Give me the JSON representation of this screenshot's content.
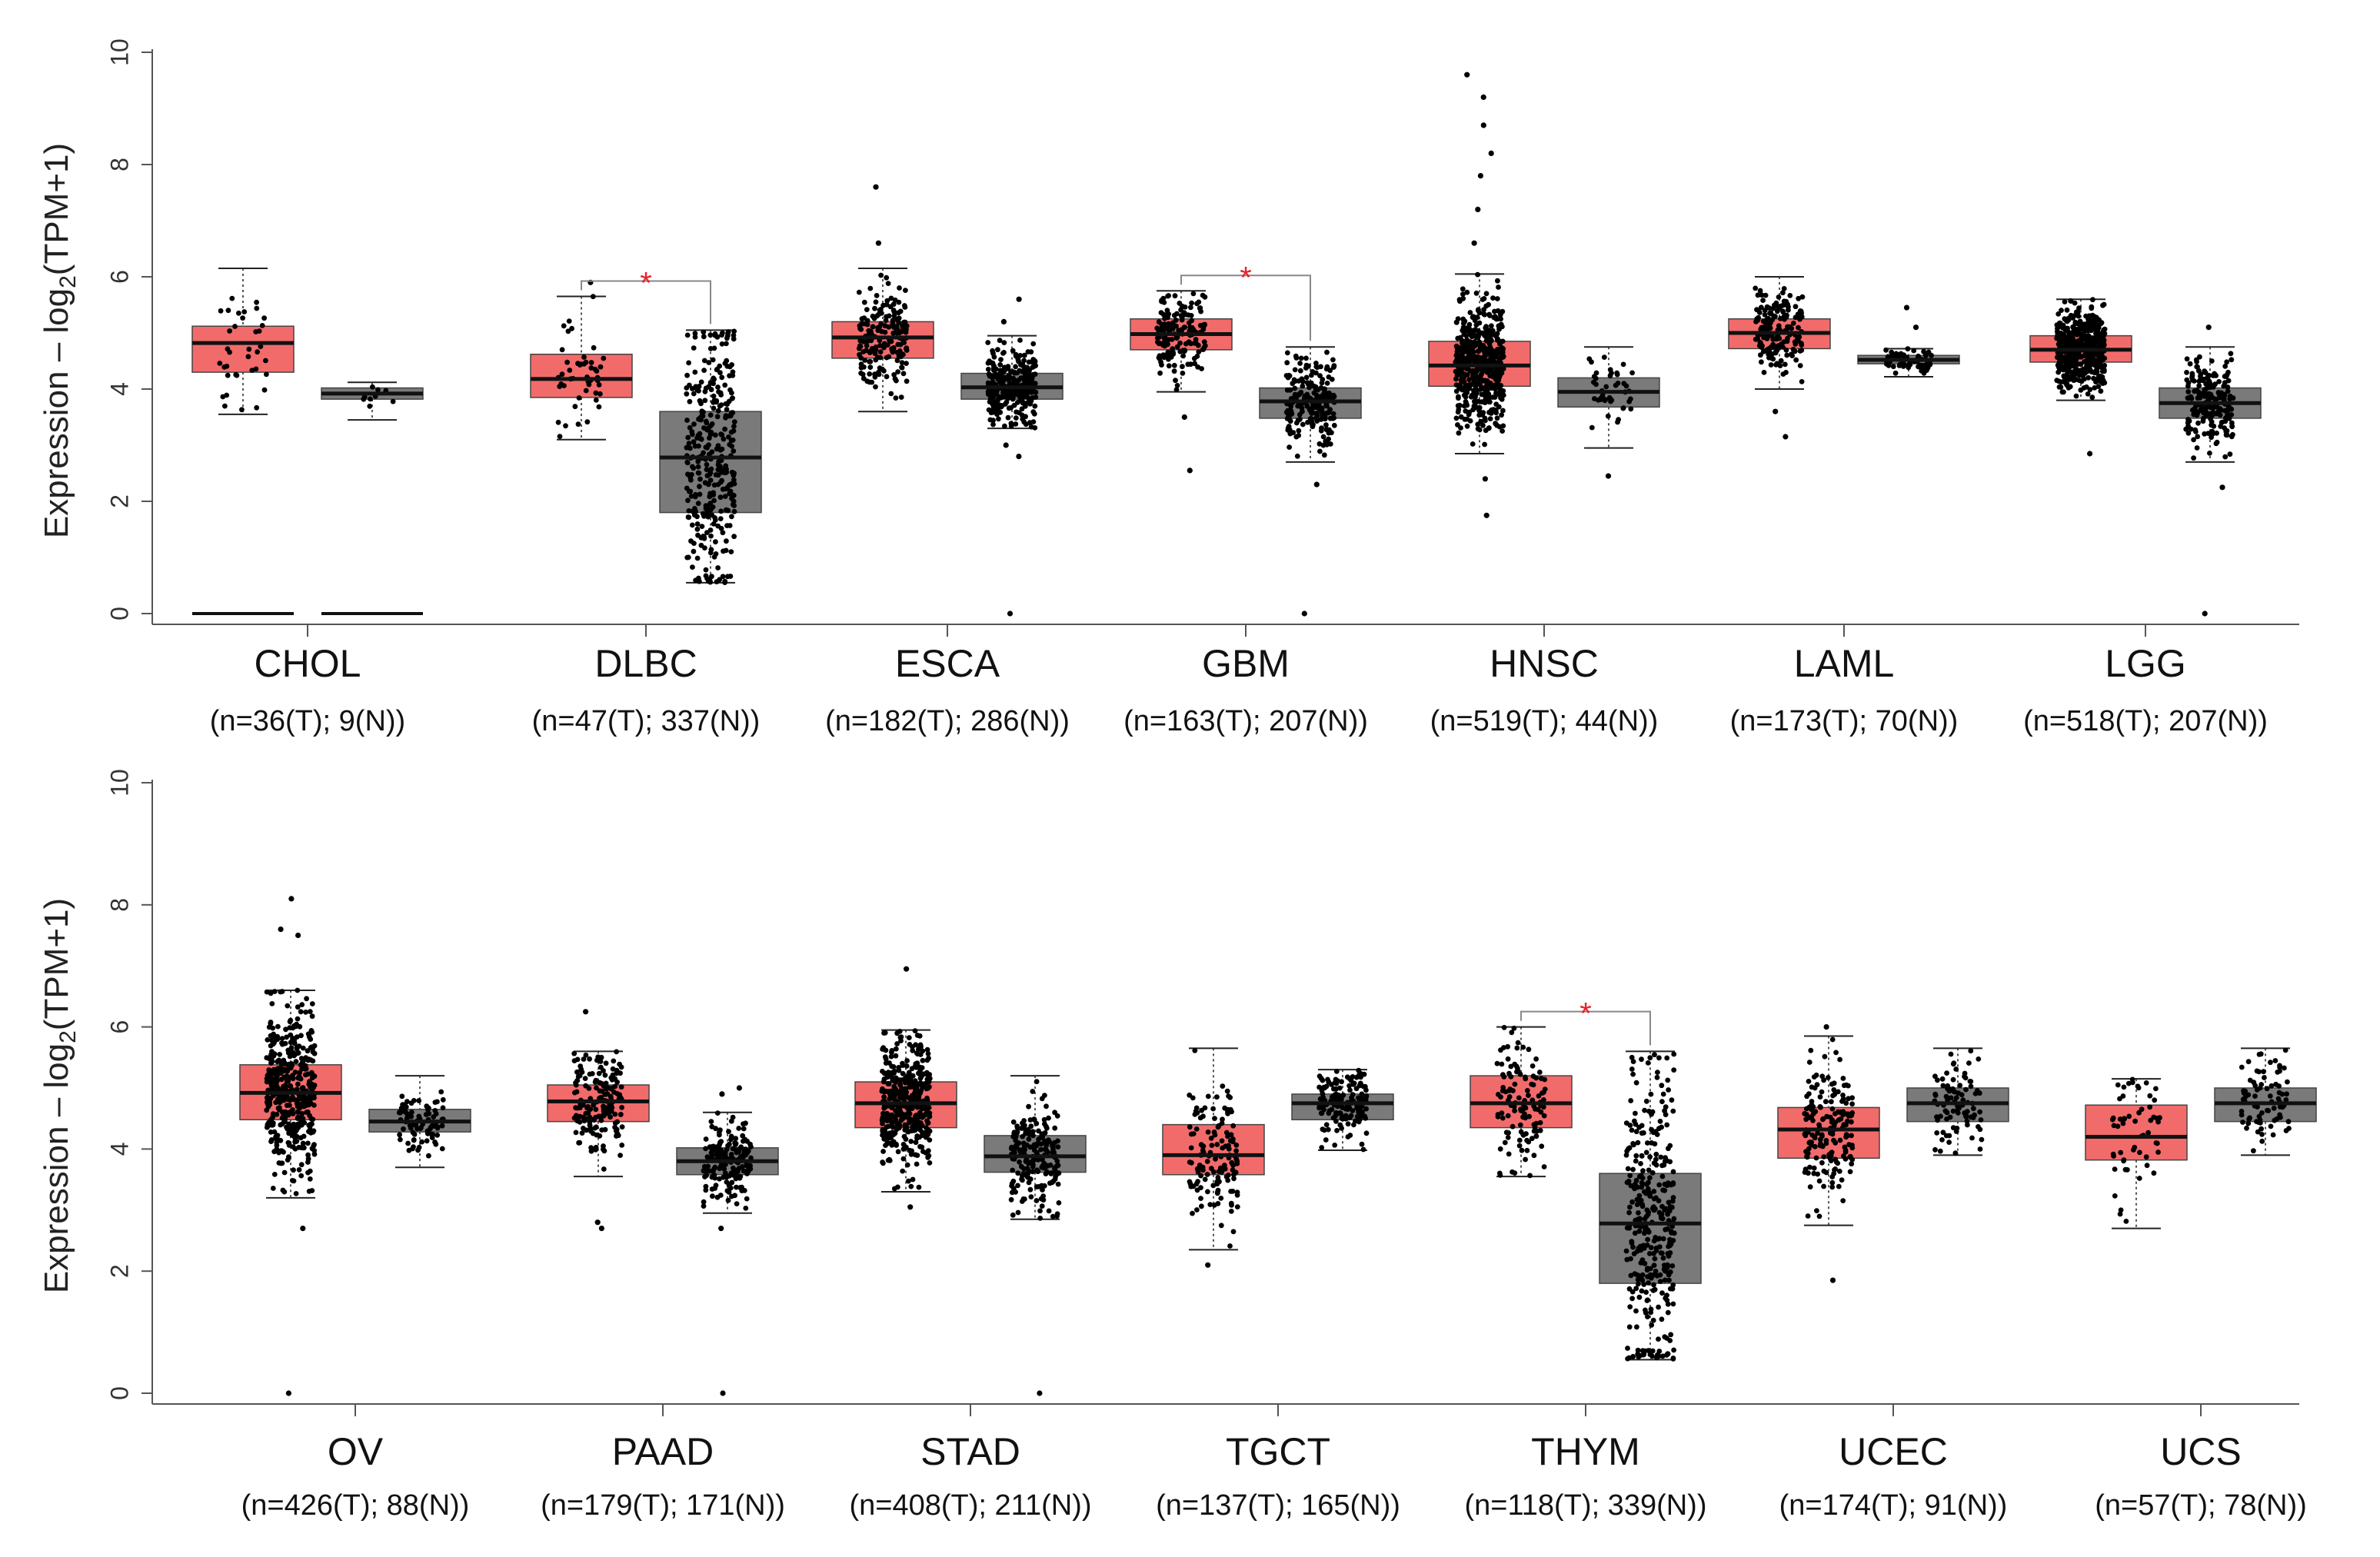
{
  "colors": {
    "tumor_fill": "#f26b6b",
    "normal_fill": "#7a7a7a",
    "median": "#111111",
    "point": "#000000",
    "significance": "#e8212b",
    "axis": "#555555"
  },
  "chart_data": [
    {
      "type": "box",
      "ylabel": "Expression – log2(TPM+1)",
      "ylabel_main": "Expression – log",
      "ylabel_sub": "2",
      "ylabel_tail": "(TPM+1)",
      "ylim": [
        0,
        10
      ],
      "yticks": [
        "0",
        "2",
        "4",
        "6",
        "8",
        "10"
      ],
      "grid": false,
      "categories": [
        {
          "name": "CHOL",
          "n_label": "(n=36(T); 9(N))",
          "significant": false,
          "sig_symbol": "",
          "tumor": {
            "q1": 4.3,
            "median": 4.82,
            "q3": 5.12,
            "whisker_low": 3.55,
            "whisker_high": 6.15,
            "n_points": 36,
            "outliers": [],
            "zero_line": true
          },
          "normal": {
            "q1": 3.82,
            "median": 3.92,
            "q3": 4.02,
            "whisker_low": 3.45,
            "whisker_high": 4.12,
            "n_points": 9,
            "outliers": [],
            "zero_line": true
          }
        },
        {
          "name": "DLBC",
          "n_label": "(n=47(T); 337(N))",
          "significant": true,
          "sig_symbol": "*",
          "tumor": {
            "q1": 3.85,
            "median": 4.18,
            "q3": 4.62,
            "whisker_low": 3.1,
            "whisker_high": 5.65,
            "n_points": 47,
            "outliers": [
              5.9
            ],
            "zero_line": false
          },
          "normal": {
            "q1": 1.8,
            "median": 2.78,
            "q3": 3.6,
            "whisker_low": 0.55,
            "whisker_high": 5.05,
            "n_points": 337,
            "outliers": [],
            "zero_line": false
          }
        },
        {
          "name": "ESCA",
          "n_label": "(n=182(T); 286(N))",
          "significant": false,
          "sig_symbol": "",
          "tumor": {
            "q1": 4.55,
            "median": 4.92,
            "q3": 5.2,
            "whisker_low": 3.6,
            "whisker_high": 6.15,
            "n_points": 182,
            "outliers": [
              6.6,
              7.6
            ],
            "zero_line": false
          },
          "normal": {
            "q1": 3.82,
            "median": 4.03,
            "q3": 4.28,
            "whisker_low": 3.3,
            "whisker_high": 4.95,
            "n_points": 286,
            "outliers": [
              2.8,
              3.0,
              5.2,
              5.6,
              0
            ],
            "zero_line": false
          }
        },
        {
          "name": "GBM",
          "n_label": "(n=163(T); 207(N))",
          "significant": true,
          "sig_symbol": "*",
          "tumor": {
            "q1": 4.7,
            "median": 4.98,
            "q3": 5.25,
            "whisker_low": 3.95,
            "whisker_high": 5.75,
            "n_points": 163,
            "outliers": [
              2.55,
              3.5
            ],
            "zero_line": false
          },
          "normal": {
            "q1": 3.48,
            "median": 3.78,
            "q3": 4.02,
            "whisker_low": 2.7,
            "whisker_high": 4.75,
            "n_points": 207,
            "outliers": [
              2.3,
              0
            ],
            "zero_line": false
          }
        },
        {
          "name": "HNSC",
          "n_label": "(n=519(T); 44(N))",
          "significant": false,
          "sig_symbol": "",
          "tumor": {
            "q1": 4.05,
            "median": 4.42,
            "q3": 4.85,
            "whisker_low": 2.85,
            "whisker_high": 6.05,
            "n_points": 519,
            "outliers": [
              1.75,
              2.4,
              6.6,
              7.2,
              7.8,
              8.2,
              8.7,
              9.2,
              9.6
            ],
            "zero_line": false
          },
          "normal": {
            "q1": 3.68,
            "median": 3.95,
            "q3": 4.2,
            "whisker_low": 2.95,
            "whisker_high": 4.75,
            "n_points": 44,
            "outliers": [
              2.45
            ],
            "zero_line": false
          }
        },
        {
          "name": "LAML",
          "n_label": "(n=173(T); 70(N))",
          "significant": false,
          "sig_symbol": "",
          "tumor": {
            "q1": 4.72,
            "median": 5.0,
            "q3": 5.25,
            "whisker_low": 4.0,
            "whisker_high": 6.0,
            "n_points": 173,
            "outliers": [
              3.15,
              3.6
            ],
            "zero_line": false
          },
          "normal": {
            "q1": 4.45,
            "median": 4.52,
            "q3": 4.6,
            "whisker_low": 4.22,
            "whisker_high": 4.72,
            "n_points": 70,
            "outliers": [
              5.45,
              5.1
            ],
            "zero_line": false
          }
        },
        {
          "name": "LGG",
          "n_label": "(n=518(T); 207(N))",
          "significant": false,
          "sig_symbol": "",
          "tumor": {
            "q1": 4.48,
            "median": 4.7,
            "q3": 4.95,
            "whisker_low": 3.8,
            "whisker_high": 5.6,
            "n_points": 518,
            "outliers": [
              2.85
            ],
            "zero_line": false
          },
          "normal": {
            "q1": 3.48,
            "median": 3.75,
            "q3": 4.02,
            "whisker_low": 2.7,
            "whisker_high": 4.75,
            "n_points": 207,
            "outliers": [
              2.25,
              5.1,
              0
            ],
            "zero_line": false
          }
        }
      ]
    },
    {
      "type": "box",
      "ylabel": "Expression – log2(TPM+1)",
      "ylabel_main": "Expression – log",
      "ylabel_sub": "2",
      "ylabel_tail": "(TPM+1)",
      "ylim": [
        0,
        10
      ],
      "yticks": [
        "0",
        "2",
        "4",
        "6",
        "8",
        "10"
      ],
      "grid": false,
      "categories": [
        {
          "name": "OV",
          "n_label": "(n=426(T); 88(N))",
          "significant": false,
          "sig_symbol": "",
          "tumor": {
            "q1": 4.48,
            "median": 4.92,
            "q3": 5.38,
            "whisker_low": 3.2,
            "whisker_high": 6.6,
            "n_points": 426,
            "outliers": [
              2.7,
              7.5,
              7.6,
              8.1,
              0
            ],
            "zero_line": false
          },
          "normal": {
            "q1": 4.28,
            "median": 4.45,
            "q3": 4.65,
            "whisker_low": 3.7,
            "whisker_high": 5.2,
            "n_points": 88,
            "outliers": [],
            "zero_line": false
          }
        },
        {
          "name": "PAAD",
          "n_label": "(n=179(T); 171(N))",
          "significant": false,
          "sig_symbol": "",
          "tumor": {
            "q1": 4.45,
            "median": 4.78,
            "q3": 5.05,
            "whisker_low": 3.55,
            "whisker_high": 5.6,
            "n_points": 179,
            "outliers": [
              2.7,
              2.8,
              6.25
            ],
            "zero_line": false
          },
          "normal": {
            "q1": 3.58,
            "median": 3.8,
            "q3": 4.02,
            "whisker_low": 2.95,
            "whisker_high": 4.6,
            "n_points": 171,
            "outliers": [
              2.7,
              4.9,
              5.0,
              0
            ],
            "zero_line": false
          }
        },
        {
          "name": "STAD",
          "n_label": "(n=408(T); 211(N))",
          "significant": false,
          "sig_symbol": "",
          "tumor": {
            "q1": 4.35,
            "median": 4.75,
            "q3": 5.1,
            "whisker_low": 3.3,
            "whisker_high": 5.95,
            "n_points": 408,
            "outliers": [
              3.05,
              6.95
            ],
            "zero_line": false
          },
          "normal": {
            "q1": 3.62,
            "median": 3.88,
            "q3": 4.22,
            "whisker_low": 2.85,
            "whisker_high": 5.2,
            "n_points": 211,
            "outliers": [
              0
            ],
            "zero_line": false
          }
        },
        {
          "name": "TGCT",
          "n_label": "(n=137(T); 165(N))",
          "significant": false,
          "sig_symbol": "",
          "tumor": {
            "q1": 3.58,
            "median": 3.9,
            "q3": 4.4,
            "whisker_low": 2.35,
            "whisker_high": 5.65,
            "n_points": 137,
            "outliers": [
              2.1
            ],
            "zero_line": false
          },
          "normal": {
            "q1": 4.48,
            "median": 4.75,
            "q3": 4.9,
            "whisker_low": 3.98,
            "whisker_high": 5.3,
            "n_points": 165,
            "outliers": [],
            "zero_line": false
          }
        },
        {
          "name": "THYM",
          "n_label": "(n=118(T); 339(N))",
          "significant": true,
          "sig_symbol": "*",
          "tumor": {
            "q1": 4.35,
            "median": 4.75,
            "q3": 5.2,
            "whisker_low": 3.55,
            "whisker_high": 6.0,
            "n_points": 118,
            "outliers": [],
            "zero_line": false
          },
          "normal": {
            "q1": 1.8,
            "median": 2.78,
            "q3": 3.6,
            "whisker_low": 0.55,
            "whisker_high": 5.6,
            "n_points": 339,
            "outliers": [],
            "zero_line": false
          }
        },
        {
          "name": "UCEC",
          "n_label": "(n=174(T); 91(N))",
          "significant": false,
          "sig_symbol": "",
          "tumor": {
            "q1": 3.85,
            "median": 4.32,
            "q3": 4.68,
            "whisker_low": 2.75,
            "whisker_high": 5.85,
            "n_points": 174,
            "outliers": [
              1.85,
              6.0
            ],
            "zero_line": false
          },
          "normal": {
            "q1": 4.45,
            "median": 4.75,
            "q3": 5.0,
            "whisker_low": 3.9,
            "whisker_high": 5.65,
            "n_points": 91,
            "outliers": [],
            "zero_line": false
          }
        },
        {
          "name": "UCS",
          "n_label": "(n=57(T); 78(N))",
          "significant": false,
          "sig_symbol": "",
          "tumor": {
            "q1": 3.82,
            "median": 4.2,
            "q3": 4.72,
            "whisker_low": 2.7,
            "whisker_high": 5.15,
            "n_points": 57,
            "outliers": [],
            "zero_line": false
          },
          "normal": {
            "q1": 4.45,
            "median": 4.75,
            "q3": 5.0,
            "whisker_low": 3.9,
            "whisker_high": 5.65,
            "n_points": 78,
            "outliers": [],
            "zero_line": false
          }
        }
      ]
    }
  ]
}
